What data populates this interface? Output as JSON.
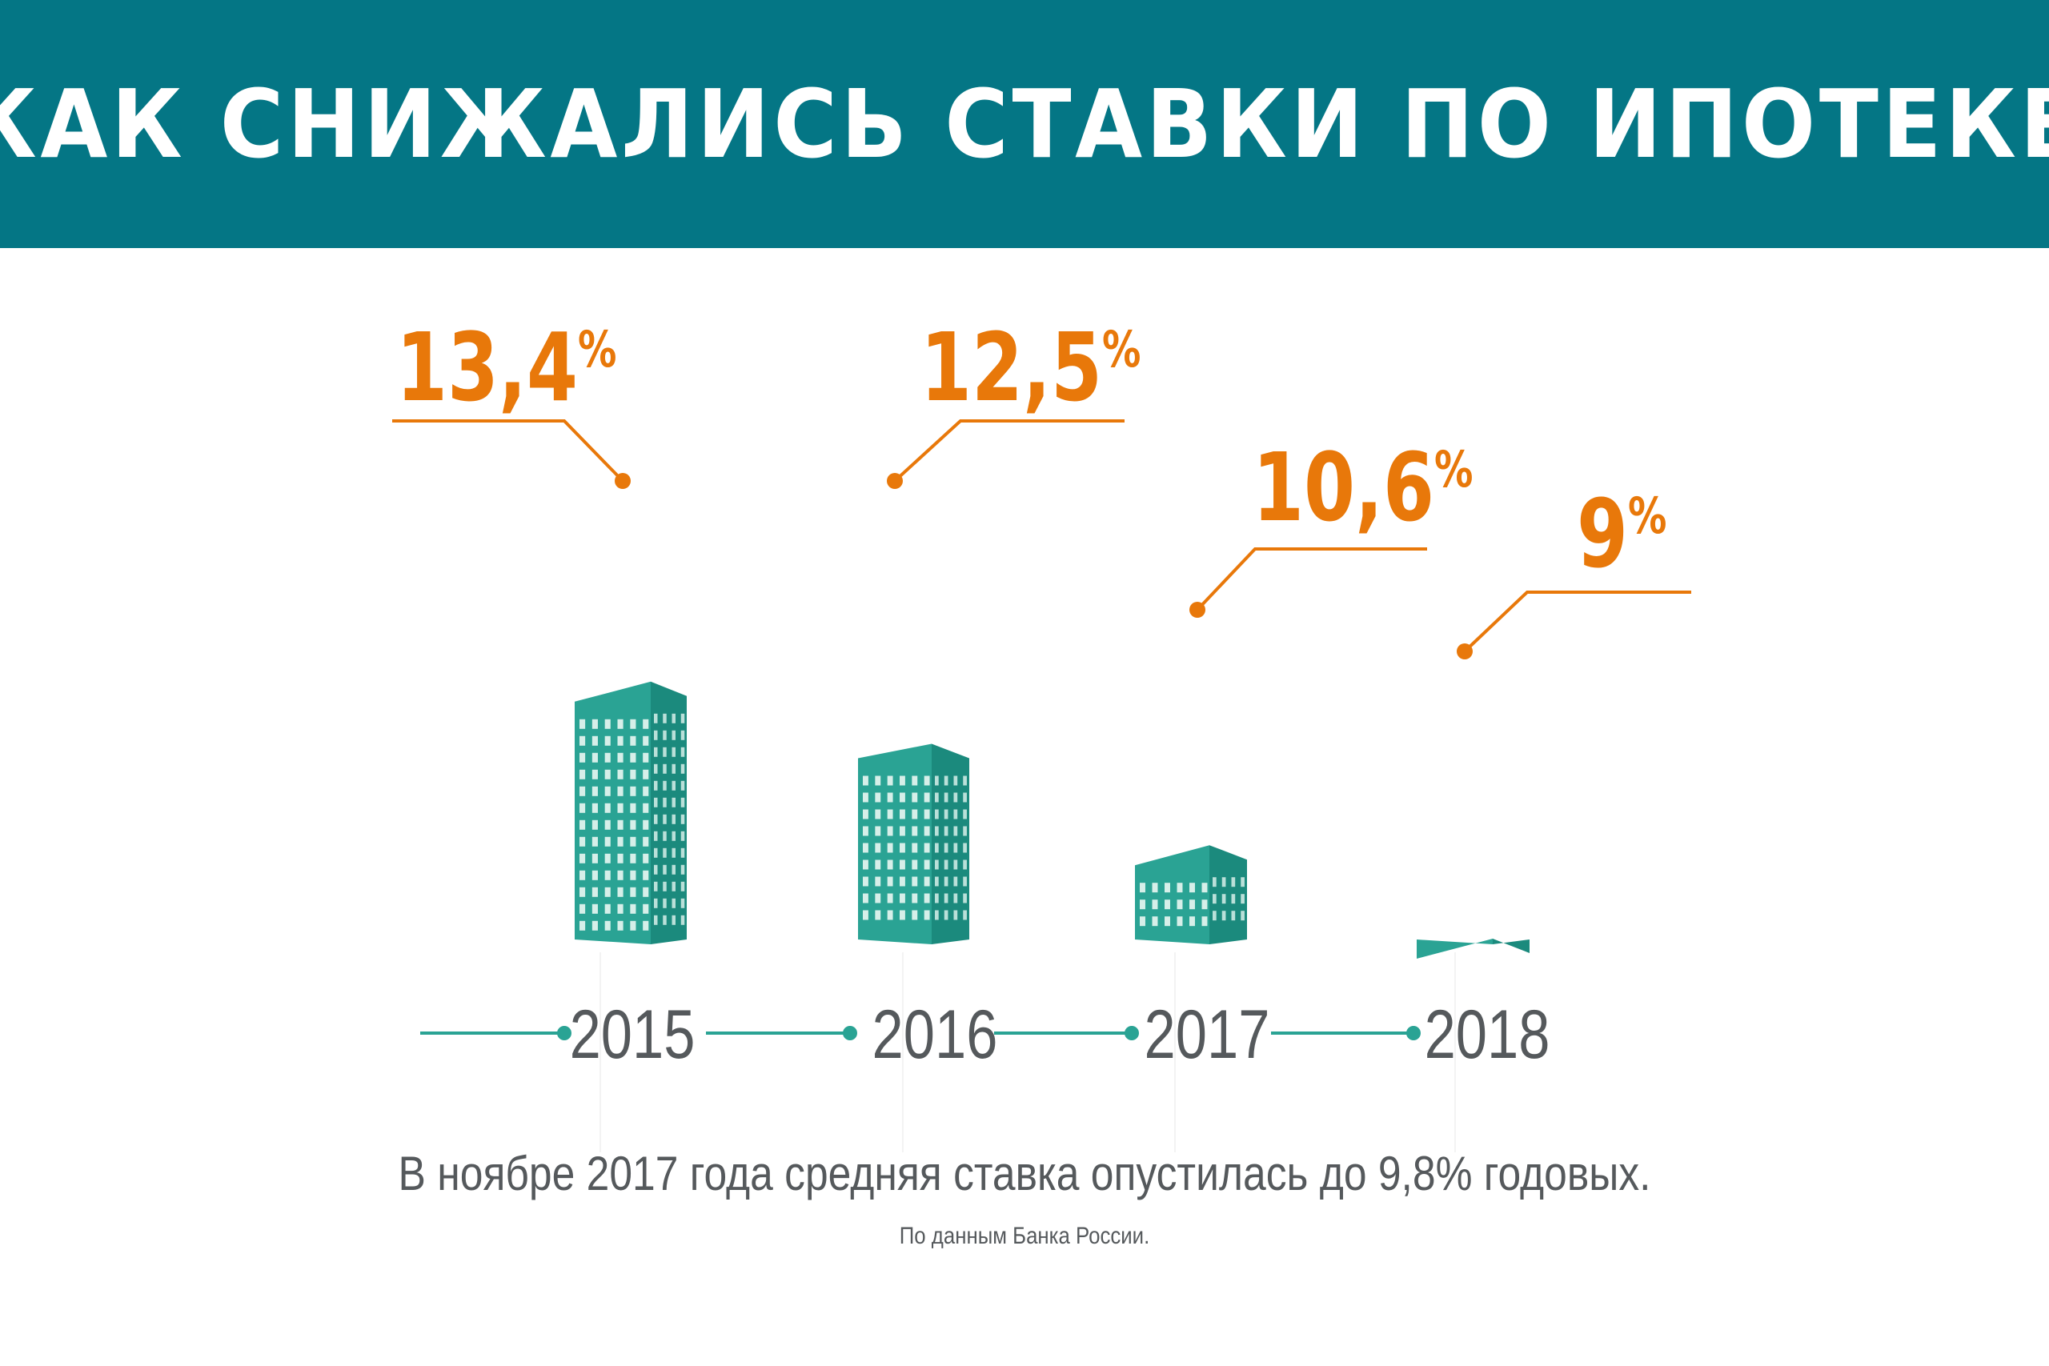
{
  "title": "КАК СНИЖАЛИСЬ СТАВКИ ПО ИПОТЕКЕ",
  "chart_data": {
    "type": "bar",
    "categories": [
      "2015",
      "2016",
      "2017",
      "2018"
    ],
    "values": [
      13.4,
      12.5,
      10.6,
      9
    ],
    "value_labels": [
      "13,4",
      "12,5",
      "10,6",
      "9"
    ],
    "unit": "%",
    "xlabel": "",
    "ylabel": ""
  },
  "note": "В ноябре 2017 года средняя ставка опустилась до 9,8% годовых.",
  "source": "По данным Банка России.",
  "colors": {
    "header": "#047685",
    "building_front": "#2aa394",
    "building_side": "#1b8a7d",
    "window": "#d6efe9",
    "accent": "#e8780a",
    "axis_line": "#2aa394",
    "year_text": "#55595c"
  }
}
